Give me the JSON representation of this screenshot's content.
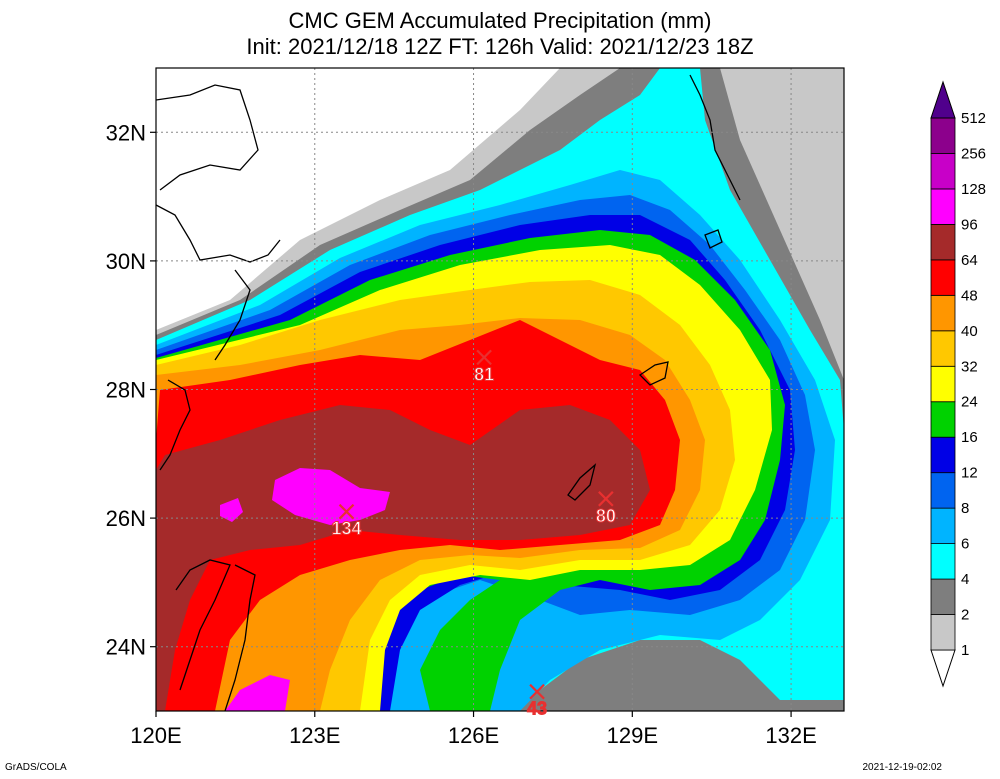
{
  "title": {
    "line1": "CMC GEM Accumulated Precipitation (mm)",
    "line2": "Init: 2021/12/18 12Z  FT: 126h  Valid: 2021/12/23 18Z"
  },
  "footer": {
    "left": "GrADS/COLA",
    "right": "2021-12-19-02:02"
  },
  "map": {
    "lon_range": [
      120,
      133
    ],
    "lat_range": [
      23,
      33
    ],
    "lon_ticks": [
      {
        "v": 120,
        "label": "120E"
      },
      {
        "v": 123,
        "label": "123E"
      },
      {
        "v": 126,
        "label": "126E"
      },
      {
        "v": 129,
        "label": "129E"
      },
      {
        "v": 132,
        "label": "132E"
      }
    ],
    "lat_ticks": [
      {
        "v": 24,
        "label": "24N"
      },
      {
        "v": 26,
        "label": "26N"
      },
      {
        "v": 28,
        "label": "28N"
      },
      {
        "v": 30,
        "label": "30N"
      },
      {
        "v": 32,
        "label": "32N"
      }
    ],
    "grid": true,
    "maxima": [
      {
        "lon": 126.2,
        "lat": 28.5,
        "label": "81",
        "color": "#ffffff"
      },
      {
        "lon": 123.6,
        "lat": 26.1,
        "label": "134",
        "color": "#ffffff"
      },
      {
        "lon": 128.5,
        "lat": 26.3,
        "label": "80",
        "color": "#ffffff"
      },
      {
        "lon": 127.2,
        "lat": 23.3,
        "label": "43",
        "color": "#e83030"
      }
    ]
  },
  "colorbar": {
    "levels": [
      "1",
      "2",
      "4",
      "6",
      "8",
      "12",
      "16",
      "24",
      "32",
      "40",
      "48",
      "64",
      "96",
      "128",
      "256",
      "512"
    ],
    "colors": [
      "#ffffff",
      "#c8c8c8",
      "#7e7e7e",
      "#00ffff",
      "#00b4ff",
      "#0064f0",
      "#0000e6",
      "#00d200",
      "#ffff00",
      "#ffc800",
      "#ff9600",
      "#ff0000",
      "#a52a2a",
      "#ff00ff",
      "#c800c8",
      "#8c008c",
      "#50008c"
    ]
  }
}
